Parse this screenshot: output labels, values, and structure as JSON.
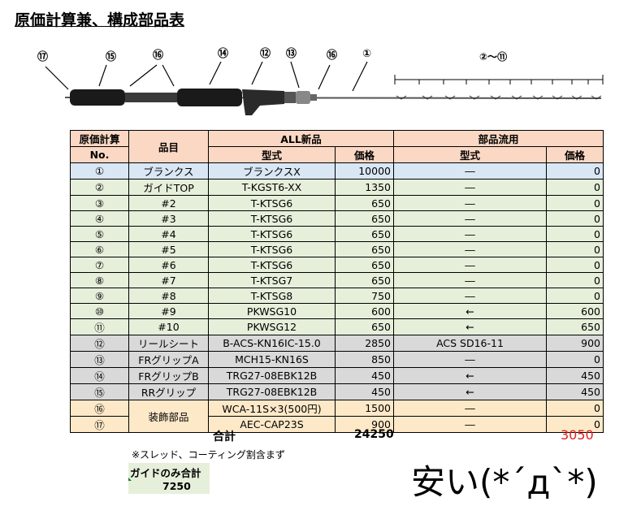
{
  "title": "原価計算兼、構成部品表",
  "diagram": {
    "callouts": [
      "⑰",
      "⑮",
      "⑯",
      "⑭",
      "⑫",
      "⑬",
      "⑯",
      "①"
    ],
    "range_label": "②～⑪"
  },
  "table": {
    "header": {
      "no_top": "原価計算",
      "no_bottom": "No.",
      "item": "品目",
      "group_new": "ALL新品",
      "group_used": "部品流用",
      "model": "型式",
      "price": "価格",
      "model2": "型式",
      "price2": "価格"
    },
    "rows": [
      {
        "no": "①",
        "item": "ブランクス",
        "model": "ブランクスX",
        "price": "10000",
        "used_model": "―",
        "used_price": "0",
        "color": "blue"
      },
      {
        "no": "②",
        "item": "ガイドTOP",
        "model": "T-KGST6-XX",
        "price": "1350",
        "used_model": "―",
        "used_price": "0",
        "color": "green"
      },
      {
        "no": "③",
        "item": "#2",
        "model": "T-KTSG6",
        "price": "650",
        "used_model": "―",
        "used_price": "0",
        "color": "green"
      },
      {
        "no": "④",
        "item": "#3",
        "model": "T-KTSG6",
        "price": "650",
        "used_model": "―",
        "used_price": "0",
        "color": "green"
      },
      {
        "no": "⑤",
        "item": "#4",
        "model": "T-KTSG6",
        "price": "650",
        "used_model": "―",
        "used_price": "0",
        "color": "green"
      },
      {
        "no": "⑥",
        "item": "#5",
        "model": "T-KTSG6",
        "price": "650",
        "used_model": "―",
        "used_price": "0",
        "color": "green"
      },
      {
        "no": "⑦",
        "item": "#6",
        "model": "T-KTSG6",
        "price": "650",
        "used_model": "―",
        "used_price": "0",
        "color": "green"
      },
      {
        "no": "⑧",
        "item": "#7",
        "model": "T-KTSG7",
        "price": "650",
        "used_model": "―",
        "used_price": "0",
        "color": "green"
      },
      {
        "no": "⑨",
        "item": "#8",
        "model": "T-KTSG8",
        "price": "750",
        "used_model": "―",
        "used_price": "0",
        "color": "green"
      },
      {
        "no": "⑩",
        "item": "#9",
        "model": "PKWSG10",
        "price": "600",
        "used_model": "←",
        "used_price": "600",
        "color": "green"
      },
      {
        "no": "⑪",
        "item": "#10",
        "model": "PKWSG12",
        "price": "650",
        "used_model": "←",
        "used_price": "650",
        "color": "green"
      },
      {
        "no": "⑫",
        "item": "リールシート",
        "model": "B-ACS-KN16IC-15.0",
        "price": "2850",
        "used_model": "ACS SD16-11",
        "used_price": "900",
        "color": "gray"
      },
      {
        "no": "⑬",
        "item": "FRグリップA",
        "model": "MCH15-KN16S",
        "price": "850",
        "used_model": "―",
        "used_price": "0",
        "color": "gray"
      },
      {
        "no": "⑭",
        "item": "FRグリップB",
        "model": "TRG27-08EBK12B",
        "price": "450",
        "used_model": "←",
        "used_price": "450",
        "color": "gray"
      },
      {
        "no": "⑮",
        "item": "RRグリップ",
        "model": "TRG27-08EBK12B",
        "price": "450",
        "used_model": "←",
        "used_price": "450",
        "color": "gray"
      },
      {
        "no": "⑯",
        "item": "装飾部品",
        "model": "WCA-11S×3(500円)",
        "price": "1500",
        "used_model": "―",
        "used_price": "0",
        "color": "yellow"
      },
      {
        "no": "⑰",
        "item": "",
        "model": "AEC-CAP23S",
        "price": "900",
        "used_model": "―",
        "used_price": "0",
        "color": "yellow"
      }
    ]
  },
  "summary": {
    "total_label": "合計",
    "total_new": "24250",
    "total_used": "3050",
    "total_used_color": "#e02020",
    "note": "※スレッド、コーティング割含まず",
    "guide_label": "ガイドのみ合計",
    "guide_value": "7250",
    "exclaim": "安い(*´д`*)"
  }
}
